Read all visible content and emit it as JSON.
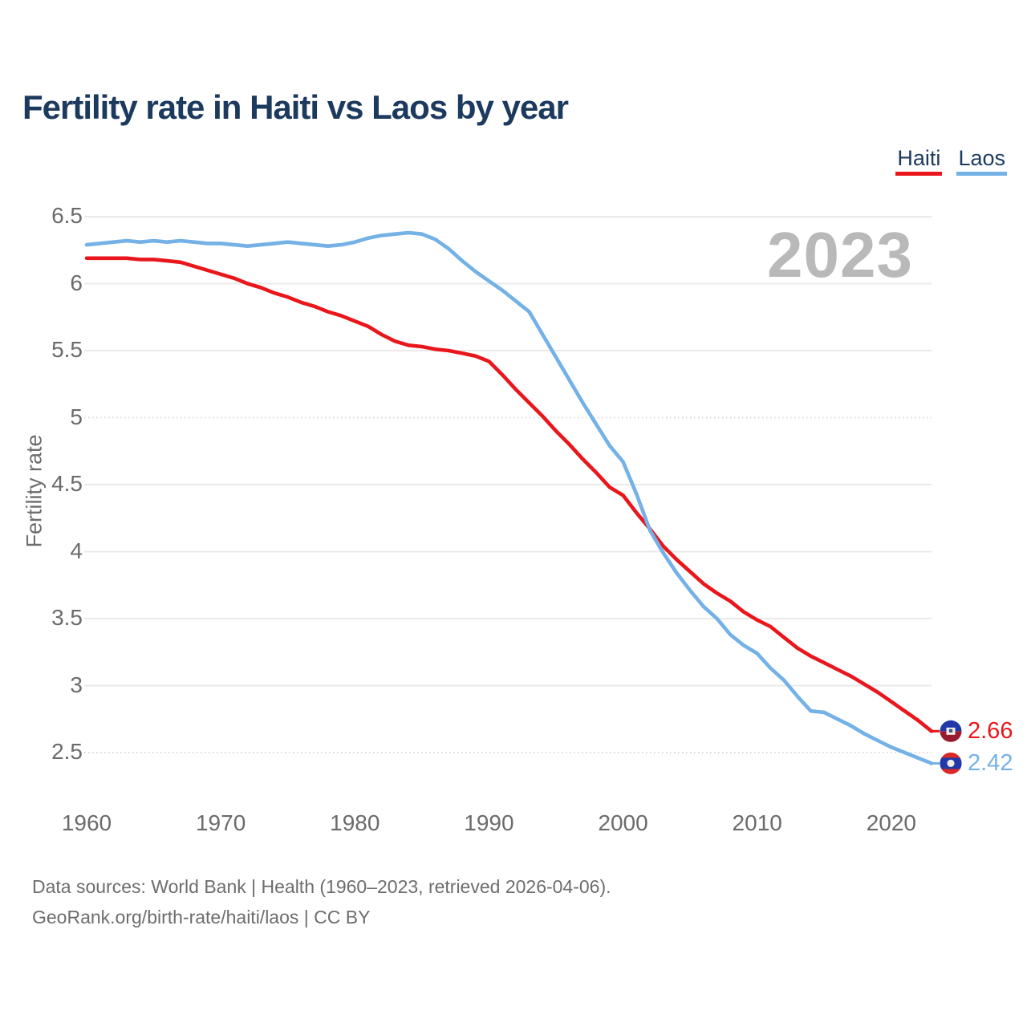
{
  "watermark": "2023",
  "footer": {
    "line1": "Data sources: World Bank | Health (1960–2023, retrieved 2026-04-06).",
    "line2": "GeoRank.org/birth-rate/haiti/laos | CC BY"
  },
  "chart_data": {
    "type": "line",
    "title": "Fertility rate in Haiti vs Laos by year",
    "xlabel": "",
    "ylabel": "Fertility rate",
    "watermark_year": "2023",
    "grid": "horizontal",
    "legend_position": "top-right",
    "ylim": [
      2.5,
      6.5
    ],
    "x_ticks": [
      1960,
      1970,
      1980,
      1990,
      2000,
      2010,
      2020
    ],
    "y_ticks": [
      {
        "value": 6.5,
        "style": "solid"
      },
      {
        "value": 6,
        "style": "solid"
      },
      {
        "value": 5.5,
        "style": "solid"
      },
      {
        "value": 5,
        "style": "dotted"
      },
      {
        "value": 4.5,
        "style": "solid"
      },
      {
        "value": 4,
        "style": "solid"
      },
      {
        "value": 3.5,
        "style": "solid"
      },
      {
        "value": 3,
        "style": "solid"
      },
      {
        "value": 2.5,
        "style": "dotted"
      }
    ],
    "x": [
      1960,
      1961,
      1962,
      1963,
      1964,
      1965,
      1966,
      1967,
      1968,
      1969,
      1970,
      1971,
      1972,
      1973,
      1974,
      1975,
      1976,
      1977,
      1978,
      1979,
      1980,
      1981,
      1982,
      1983,
      1984,
      1985,
      1986,
      1987,
      1988,
      1989,
      1990,
      1991,
      1992,
      1993,
      1994,
      1995,
      1996,
      1997,
      1998,
      1999,
      2000,
      2001,
      2002,
      2003,
      2004,
      2005,
      2006,
      2007,
      2008,
      2009,
      2010,
      2011,
      2012,
      2013,
      2014,
      2015,
      2016,
      2017,
      2018,
      2019,
      2020,
      2021,
      2022,
      2023
    ],
    "series": [
      {
        "name": "Haiti",
        "color": "#e9161c",
        "flag": "haiti",
        "end_label": "2.66",
        "values": [
          6.19,
          6.19,
          6.19,
          6.19,
          6.18,
          6.18,
          6.17,
          6.16,
          6.13,
          6.1,
          6.07,
          6.04,
          6.0,
          5.97,
          5.93,
          5.9,
          5.86,
          5.83,
          5.79,
          5.76,
          5.72,
          5.68,
          5.62,
          5.57,
          5.54,
          5.53,
          5.51,
          5.5,
          5.48,
          5.46,
          5.42,
          5.32,
          5.21,
          5.11,
          5.01,
          4.9,
          4.8,
          4.69,
          4.59,
          4.48,
          4.42,
          4.29,
          4.17,
          4.04,
          3.94,
          3.85,
          3.76,
          3.69,
          3.63,
          3.55,
          3.49,
          3.44,
          3.36,
          3.28,
          3.22,
          3.17,
          3.12,
          3.07,
          3.01,
          2.95,
          2.88,
          2.81,
          2.74,
          2.66
        ]
      },
      {
        "name": "Laos",
        "color": "#73b1e6",
        "flag": "laos",
        "end_label": "2.42",
        "values": [
          6.29,
          6.3,
          6.31,
          6.32,
          6.31,
          6.32,
          6.31,
          6.32,
          6.31,
          6.3,
          6.3,
          6.29,
          6.28,
          6.29,
          6.3,
          6.31,
          6.3,
          6.29,
          6.28,
          6.29,
          6.31,
          6.34,
          6.36,
          6.37,
          6.38,
          6.37,
          6.33,
          6.26,
          6.17,
          6.09,
          6.02,
          5.95,
          5.87,
          5.79,
          5.62,
          5.45,
          5.28,
          5.11,
          4.95,
          4.79,
          4.67,
          4.43,
          4.16,
          3.99,
          3.84,
          3.71,
          3.59,
          3.5,
          3.38,
          3.3,
          3.24,
          3.13,
          3.04,
          2.92,
          2.81,
          2.8,
          2.75,
          2.7,
          2.64,
          2.59,
          2.54,
          2.5,
          2.46,
          2.42
        ]
      }
    ]
  }
}
